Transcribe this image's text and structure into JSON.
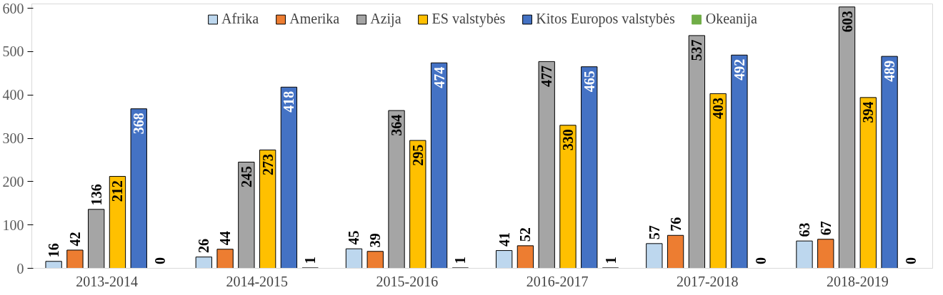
{
  "chart_data": {
    "type": "bar",
    "categories": [
      "2013-2014",
      "2014-2015",
      "2015-2016",
      "2016-2017",
      "2017-2018",
      "2018-2019"
    ],
    "series": [
      {
        "name": "Afrika",
        "color": "#bdd7ee",
        "values": [
          16,
          26,
          45,
          41,
          57,
          63
        ]
      },
      {
        "name": "Amerika",
        "color": "#ed7d31",
        "values": [
          42,
          44,
          39,
          52,
          76,
          67
        ]
      },
      {
        "name": "Azija",
        "color": "#a5a5a5",
        "values": [
          136,
          245,
          364,
          477,
          537,
          603
        ]
      },
      {
        "name": "ES valstybės",
        "color": "#ffc000",
        "values": [
          212,
          273,
          295,
          330,
          403,
          394
        ]
      },
      {
        "name": "Kitos Europos valstybės",
        "color": "#4472c4",
        "values": [
          368,
          418,
          474,
          465,
          492,
          489
        ]
      },
      {
        "name": "Okeanija",
        "color": "#70ad47",
        "values": [
          0,
          1,
          1,
          1,
          0,
          0
        ]
      }
    ],
    "ylim": [
      0,
      610
    ],
    "yticks": [
      0,
      100,
      200,
      300,
      400,
      500,
      600
    ],
    "data_labels": true,
    "legend": "top",
    "grid": false
  }
}
